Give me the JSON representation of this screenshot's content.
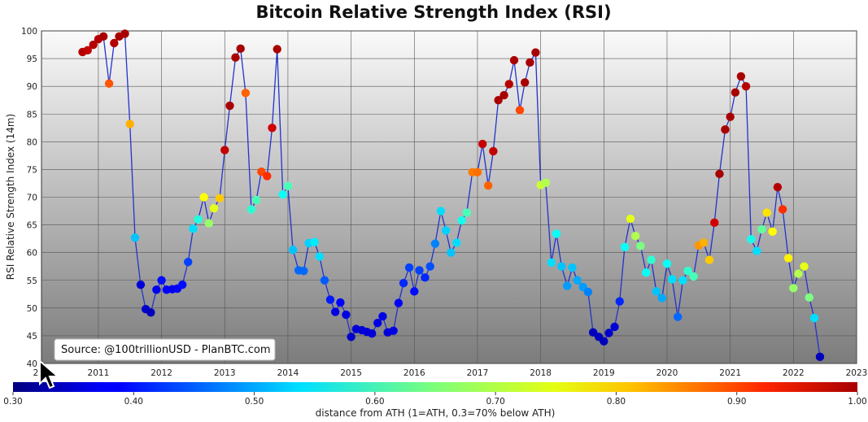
{
  "chart_data": {
    "type": "scatter",
    "title": "Bitcoin Relative Strength Index (RSI)",
    "ylabel": "RSI Relative Strength Index (14m)",
    "xlim": [
      2010.1,
      2023.0
    ],
    "ylim": [
      40,
      100
    ],
    "x_tick_labels": [
      "2011",
      "2012",
      "2013",
      "2014",
      "2015",
      "2016",
      "2017",
      "2018",
      "2019",
      "2020",
      "2021",
      "2022",
      "2023"
    ],
    "x_tick_partial": "2",
    "y_tick_labels": [
      "40",
      "45",
      "50",
      "55",
      "60",
      "65",
      "70",
      "75",
      "80",
      "85",
      "90",
      "95",
      "100"
    ],
    "grid": true,
    "annotation": "Source: @100trillionUSD  -  PlanBTC.com",
    "line_color": "#2233cc",
    "colorbar": {
      "label": "distance from ATH (1=ATH, 0.3=70% below ATH)",
      "range": [
        0.3,
        1.0
      ],
      "tick_labels": [
        "0.30",
        "0.40",
        "0.50",
        "0.60",
        "0.70",
        "0.80",
        "0.90",
        "1.00"
      ],
      "colormap": "jet"
    },
    "points": [
      {
        "x": 2010.75,
        "y": 96.2,
        "c": 0.99
      },
      {
        "x": 2010.83,
        "y": 96.5,
        "c": 0.98
      },
      {
        "x": 2010.92,
        "y": 97.5,
        "c": 0.99
      },
      {
        "x": 2011.0,
        "y": 98.5,
        "c": 0.99
      },
      {
        "x": 2011.08,
        "y": 99.0,
        "c": 1.0
      },
      {
        "x": 2011.17,
        "y": 90.5,
        "c": 0.87
      },
      {
        "x": 2011.25,
        "y": 97.8,
        "c": 0.99
      },
      {
        "x": 2011.33,
        "y": 99.0,
        "c": 1.0
      },
      {
        "x": 2011.42,
        "y": 99.5,
        "c": 1.0
      },
      {
        "x": 2011.5,
        "y": 83.2,
        "c": 0.8
      },
      {
        "x": 2011.58,
        "y": 62.7,
        "c": 0.5
      },
      {
        "x": 2011.67,
        "y": 54.2,
        "c": 0.32
      },
      {
        "x": 2011.75,
        "y": 49.8,
        "c": 0.31
      },
      {
        "x": 2011.83,
        "y": 49.2,
        "c": 0.3
      },
      {
        "x": 2011.92,
        "y": 53.3,
        "c": 0.34
      },
      {
        "x": 2012.0,
        "y": 55.0,
        "c": 0.36
      },
      {
        "x": 2012.08,
        "y": 53.3,
        "c": 0.35
      },
      {
        "x": 2012.17,
        "y": 53.4,
        "c": 0.34
      },
      {
        "x": 2012.25,
        "y": 53.5,
        "c": 0.35
      },
      {
        "x": 2012.33,
        "y": 54.2,
        "c": 0.36
      },
      {
        "x": 2012.42,
        "y": 58.3,
        "c": 0.4
      },
      {
        "x": 2012.5,
        "y": 64.3,
        "c": 0.52
      },
      {
        "x": 2012.58,
        "y": 66.0,
        "c": 0.57
      },
      {
        "x": 2012.67,
        "y": 70.0,
        "c": 0.74
      },
      {
        "x": 2012.75,
        "y": 65.3,
        "c": 0.66
      },
      {
        "x": 2012.83,
        "y": 68.0,
        "c": 0.72
      },
      {
        "x": 2012.92,
        "y": 69.8,
        "c": 0.78
      },
      {
        "x": 2013.0,
        "y": 78.5,
        "c": 0.98
      },
      {
        "x": 2013.08,
        "y": 86.5,
        "c": 1.0
      },
      {
        "x": 2013.17,
        "y": 95.2,
        "c": 1.0
      },
      {
        "x": 2013.25,
        "y": 96.8,
        "c": 1.0
      },
      {
        "x": 2013.33,
        "y": 88.8,
        "c": 0.86
      },
      {
        "x": 2013.42,
        "y": 67.8,
        "c": 0.58
      },
      {
        "x": 2013.5,
        "y": 69.5,
        "c": 0.6
      },
      {
        "x": 2013.58,
        "y": 74.6,
        "c": 0.88
      },
      {
        "x": 2013.67,
        "y": 73.8,
        "c": 0.9
      },
      {
        "x": 2013.75,
        "y": 82.5,
        "c": 0.97
      },
      {
        "x": 2013.83,
        "y": 96.7,
        "c": 1.0
      },
      {
        "x": 2013.92,
        "y": 70.5,
        "c": 0.55
      },
      {
        "x": 2014.0,
        "y": 72.0,
        "c": 0.6
      },
      {
        "x": 2014.08,
        "y": 60.5,
        "c": 0.5
      },
      {
        "x": 2014.17,
        "y": 56.8,
        "c": 0.43
      },
      {
        "x": 2014.25,
        "y": 56.7,
        "c": 0.43
      },
      {
        "x": 2014.33,
        "y": 61.7,
        "c": 0.51
      },
      {
        "x": 2014.42,
        "y": 61.9,
        "c": 0.53
      },
      {
        "x": 2014.5,
        "y": 59.3,
        "c": 0.52
      },
      {
        "x": 2014.58,
        "y": 55.0,
        "c": 0.42
      },
      {
        "x": 2014.67,
        "y": 51.5,
        "c": 0.37
      },
      {
        "x": 2014.75,
        "y": 49.3,
        "c": 0.33
      },
      {
        "x": 2014.83,
        "y": 51.0,
        "c": 0.35
      },
      {
        "x": 2014.92,
        "y": 48.8,
        "c": 0.33
      },
      {
        "x": 2015.0,
        "y": 44.8,
        "c": 0.31
      },
      {
        "x": 2015.08,
        "y": 46.2,
        "c": 0.32
      },
      {
        "x": 2015.17,
        "y": 46.0,
        "c": 0.32
      },
      {
        "x": 2015.25,
        "y": 45.7,
        "c": 0.32
      },
      {
        "x": 2015.33,
        "y": 45.4,
        "c": 0.32
      },
      {
        "x": 2015.42,
        "y": 47.3,
        "c": 0.33
      },
      {
        "x": 2015.5,
        "y": 48.5,
        "c": 0.33
      },
      {
        "x": 2015.58,
        "y": 45.6,
        "c": 0.32
      },
      {
        "x": 2015.67,
        "y": 45.9,
        "c": 0.33
      },
      {
        "x": 2015.75,
        "y": 50.9,
        "c": 0.35
      },
      {
        "x": 2015.83,
        "y": 54.5,
        "c": 0.38
      },
      {
        "x": 2015.92,
        "y": 57.3,
        "c": 0.4
      },
      {
        "x": 2016.0,
        "y": 53.0,
        "c": 0.36
      },
      {
        "x": 2016.08,
        "y": 56.8,
        "c": 0.4
      },
      {
        "x": 2016.17,
        "y": 55.5,
        "c": 0.38
      },
      {
        "x": 2016.25,
        "y": 57.5,
        "c": 0.41
      },
      {
        "x": 2016.33,
        "y": 61.6,
        "c": 0.45
      },
      {
        "x": 2016.42,
        "y": 67.5,
        "c": 0.52
      },
      {
        "x": 2016.5,
        "y": 64.0,
        "c": 0.51
      },
      {
        "x": 2016.58,
        "y": 60.0,
        "c": 0.5
      },
      {
        "x": 2016.67,
        "y": 61.8,
        "c": 0.52
      },
      {
        "x": 2016.75,
        "y": 65.8,
        "c": 0.56
      },
      {
        "x": 2016.83,
        "y": 67.2,
        "c": 0.6
      },
      {
        "x": 2016.92,
        "y": 74.5,
        "c": 0.84
      },
      {
        "x": 2017.0,
        "y": 74.5,
        "c": 0.85
      },
      {
        "x": 2017.08,
        "y": 79.6,
        "c": 0.98
      },
      {
        "x": 2017.17,
        "y": 72.1,
        "c": 0.86
      },
      {
        "x": 2017.25,
        "y": 78.3,
        "c": 0.98
      },
      {
        "x": 2017.33,
        "y": 87.5,
        "c": 1.0
      },
      {
        "x": 2017.42,
        "y": 88.4,
        "c": 1.0
      },
      {
        "x": 2017.5,
        "y": 90.4,
        "c": 0.99
      },
      {
        "x": 2017.58,
        "y": 94.7,
        "c": 1.0
      },
      {
        "x": 2017.67,
        "y": 85.7,
        "c": 0.88
      },
      {
        "x": 2017.75,
        "y": 90.7,
        "c": 1.0
      },
      {
        "x": 2017.83,
        "y": 94.3,
        "c": 1.0
      },
      {
        "x": 2017.92,
        "y": 96.1,
        "c": 1.0
      },
      {
        "x": 2018.0,
        "y": 72.2,
        "c": 0.7
      },
      {
        "x": 2018.08,
        "y": 72.6,
        "c": 0.68
      },
      {
        "x": 2018.17,
        "y": 58.2,
        "c": 0.52
      },
      {
        "x": 2018.25,
        "y": 63.4,
        "c": 0.55
      },
      {
        "x": 2018.33,
        "y": 57.5,
        "c": 0.5
      },
      {
        "x": 2018.42,
        "y": 54.0,
        "c": 0.47
      },
      {
        "x": 2018.5,
        "y": 57.3,
        "c": 0.5
      },
      {
        "x": 2018.58,
        "y": 55.0,
        "c": 0.48
      },
      {
        "x": 2018.67,
        "y": 53.8,
        "c": 0.47
      },
      {
        "x": 2018.75,
        "y": 52.9,
        "c": 0.45
      },
      {
        "x": 2018.83,
        "y": 45.6,
        "c": 0.3
      },
      {
        "x": 2018.92,
        "y": 44.8,
        "c": 0.3
      },
      {
        "x": 2019.0,
        "y": 44.0,
        "c": 0.3
      },
      {
        "x": 2019.08,
        "y": 45.5,
        "c": 0.31
      },
      {
        "x": 2019.17,
        "y": 46.6,
        "c": 0.32
      },
      {
        "x": 2019.25,
        "y": 51.2,
        "c": 0.38
      },
      {
        "x": 2019.33,
        "y": 61.0,
        "c": 0.55
      },
      {
        "x": 2019.42,
        "y": 66.1,
        "c": 0.72
      },
      {
        "x": 2019.5,
        "y": 63.0,
        "c": 0.68
      },
      {
        "x": 2019.58,
        "y": 61.2,
        "c": 0.64
      },
      {
        "x": 2019.67,
        "y": 56.4,
        "c": 0.55
      },
      {
        "x": 2019.75,
        "y": 58.7,
        "c": 0.58
      },
      {
        "x": 2019.83,
        "y": 53.0,
        "c": 0.5
      },
      {
        "x": 2019.92,
        "y": 51.8,
        "c": 0.48
      },
      {
        "x": 2020.0,
        "y": 58.0,
        "c": 0.55
      },
      {
        "x": 2020.08,
        "y": 55.2,
        "c": 0.52
      },
      {
        "x": 2020.17,
        "y": 48.4,
        "c": 0.43
      },
      {
        "x": 2020.25,
        "y": 55.0,
        "c": 0.52
      },
      {
        "x": 2020.33,
        "y": 56.7,
        "c": 0.58
      },
      {
        "x": 2020.42,
        "y": 55.7,
        "c": 0.6
      },
      {
        "x": 2020.5,
        "y": 61.3,
        "c": 0.82
      },
      {
        "x": 2020.58,
        "y": 61.8,
        "c": 0.8
      },
      {
        "x": 2020.67,
        "y": 58.7,
        "c": 0.78
      },
      {
        "x": 2020.75,
        "y": 65.4,
        "c": 0.97
      },
      {
        "x": 2020.83,
        "y": 74.2,
        "c": 1.0
      },
      {
        "x": 2020.92,
        "y": 82.2,
        "c": 1.0
      },
      {
        "x": 2021.0,
        "y": 84.5,
        "c": 1.0
      },
      {
        "x": 2021.08,
        "y": 88.9,
        "c": 1.0
      },
      {
        "x": 2021.17,
        "y": 91.8,
        "c": 1.0
      },
      {
        "x": 2021.25,
        "y": 90.0,
        "c": 0.99
      },
      {
        "x": 2021.33,
        "y": 62.4,
        "c": 0.56
      },
      {
        "x": 2021.42,
        "y": 60.3,
        "c": 0.52
      },
      {
        "x": 2021.5,
        "y": 64.2,
        "c": 0.62
      },
      {
        "x": 2021.58,
        "y": 67.2,
        "c": 0.76
      },
      {
        "x": 2021.67,
        "y": 63.8,
        "c": 0.74
      },
      {
        "x": 2021.75,
        "y": 71.8,
        "c": 0.99
      },
      {
        "x": 2021.83,
        "y": 67.8,
        "c": 0.9
      },
      {
        "x": 2021.92,
        "y": 59.0,
        "c": 0.75
      },
      {
        "x": 2022.0,
        "y": 53.6,
        "c": 0.66
      },
      {
        "x": 2022.08,
        "y": 56.2,
        "c": 0.68
      },
      {
        "x": 2022.17,
        "y": 57.5,
        "c": 0.72
      },
      {
        "x": 2022.25,
        "y": 51.9,
        "c": 0.64
      },
      {
        "x": 2022.33,
        "y": 48.2,
        "c": 0.52
      },
      {
        "x": 2022.42,
        "y": 41.2,
        "c": 0.3
      }
    ]
  }
}
